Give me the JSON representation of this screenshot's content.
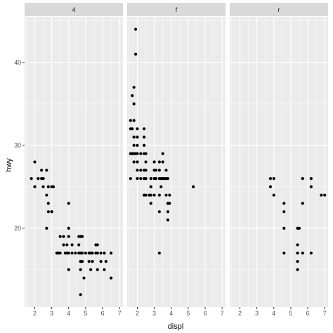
{
  "chart_data": {
    "type": "scatter",
    "xlabel": "displ",
    "ylabel": "hwy",
    "xlim": [
      1.4,
      7.2
    ],
    "ylim": [
      10.5,
      45.5
    ],
    "x_major_ticks": [
      2,
      3,
      4,
      5,
      6,
      7
    ],
    "x_tick_labels": [
      "2",
      "3",
      "4",
      "5",
      "6",
      "7"
    ],
    "y_major_ticks": [
      20,
      30,
      40
    ],
    "y_tick_labels": [
      "20",
      "30",
      "40"
    ],
    "grid": true,
    "facets": [
      {
        "label": "4",
        "points": [
          [
            1.8,
            26
          ],
          [
            2.0,
            25
          ],
          [
            2.0,
            28
          ],
          [
            2.2,
            26
          ],
          [
            2.4,
            26
          ],
          [
            2.4,
            27
          ],
          [
            2.5,
            26
          ],
          [
            2.5,
            25
          ],
          [
            2.7,
            27
          ],
          [
            2.7,
            24
          ],
          [
            2.8,
            25
          ],
          [
            2.8,
            23
          ],
          [
            2.8,
            22
          ],
          [
            3.0,
            22
          ],
          [
            3.0,
            25
          ],
          [
            3.1,
            25
          ],
          [
            2.7,
            20
          ],
          [
            3.0,
            22
          ],
          [
            3.3,
            17
          ],
          [
            3.4,
            17
          ],
          [
            3.5,
            17
          ],
          [
            3.5,
            19
          ],
          [
            3.7,
            19
          ],
          [
            3.7,
            18
          ],
          [
            3.8,
            17
          ],
          [
            3.9,
            17
          ],
          [
            3.9,
            18
          ],
          [
            4.0,
            15
          ],
          [
            4.0,
            17
          ],
          [
            4.0,
            19
          ],
          [
            4.0,
            20
          ],
          [
            4.0,
            23
          ],
          [
            4.2,
            18
          ],
          [
            4.2,
            17
          ],
          [
            4.4,
            17
          ],
          [
            4.6,
            17
          ],
          [
            4.6,
            19
          ],
          [
            4.6,
            18
          ],
          [
            4.7,
            16
          ],
          [
            4.7,
            17
          ],
          [
            4.7,
            19
          ],
          [
            4.7,
            15
          ],
          [
            4.7,
            12
          ],
          [
            4.8,
            16
          ],
          [
            4.8,
            17
          ],
          [
            4.8,
            19
          ],
          [
            4.9,
            14
          ],
          [
            5.0,
            17
          ],
          [
            5.2,
            17
          ],
          [
            5.2,
            16
          ],
          [
            5.3,
            17
          ],
          [
            5.3,
            15
          ],
          [
            5.4,
            17
          ],
          [
            5.4,
            16
          ],
          [
            5.6,
            17
          ],
          [
            5.7,
            15
          ],
          [
            5.7,
            17
          ],
          [
            5.9,
            16
          ],
          [
            5.9,
            17
          ],
          [
            6.1,
            17
          ],
          [
            6.1,
            15
          ],
          [
            6.2,
            16
          ],
          [
            6.5,
            14
          ],
          [
            6.5,
            17
          ],
          [
            5.6,
            18
          ],
          [
            5.7,
            18
          ]
        ]
      },
      {
        "label": "f",
        "points": [
          [
            1.6,
            33
          ],
          [
            1.6,
            32
          ],
          [
            1.6,
            29
          ],
          [
            1.6,
            26
          ],
          [
            1.7,
            32
          ],
          [
            1.7,
            29
          ],
          [
            1.7,
            36
          ],
          [
            1.8,
            37
          ],
          [
            1.8,
            35
          ],
          [
            1.8,
            33
          ],
          [
            1.8,
            30
          ],
          [
            1.8,
            29
          ],
          [
            1.8,
            31
          ],
          [
            1.8,
            28
          ],
          [
            1.9,
            44
          ],
          [
            1.9,
            41
          ],
          [
            1.9,
            29
          ],
          [
            2.0,
            26
          ],
          [
            2.0,
            27
          ],
          [
            2.0,
            28
          ],
          [
            2.0,
            29
          ],
          [
            2.0,
            30
          ],
          [
            2.0,
            31
          ],
          [
            2.0,
            32
          ],
          [
            2.2,
            26
          ],
          [
            2.2,
            27
          ],
          [
            2.2,
            29
          ],
          [
            2.4,
            24
          ],
          [
            2.4,
            26
          ],
          [
            2.4,
            27
          ],
          [
            2.4,
            29
          ],
          [
            2.4,
            30
          ],
          [
            2.4,
            31
          ],
          [
            2.4,
            32
          ],
          [
            2.5,
            24
          ],
          [
            2.5,
            26
          ],
          [
            2.5,
            27
          ],
          [
            2.5,
            28
          ],
          [
            2.5,
            29
          ],
          [
            2.7,
            24
          ],
          [
            2.8,
            23
          ],
          [
            2.8,
            24
          ],
          [
            2.8,
            25
          ],
          [
            2.8,
            26
          ],
          [
            3.0,
            24
          ],
          [
            3.0,
            26
          ],
          [
            3.0,
            27
          ],
          [
            3.0,
            28
          ],
          [
            3.1,
            26
          ],
          [
            3.1,
            27
          ],
          [
            3.3,
            17
          ],
          [
            3.3,
            22
          ],
          [
            3.3,
            24
          ],
          [
            3.3,
            26
          ],
          [
            3.3,
            27
          ],
          [
            3.3,
            28
          ],
          [
            3.4,
            25
          ],
          [
            3.4,
            26
          ],
          [
            3.5,
            26
          ],
          [
            3.5,
            28
          ],
          [
            3.5,
            29
          ],
          [
            3.6,
            26
          ],
          [
            3.7,
            26
          ],
          [
            3.7,
            27
          ],
          [
            3.7,
            24
          ],
          [
            3.8,
            21
          ],
          [
            3.8,
            22
          ],
          [
            3.8,
            23
          ],
          [
            3.8,
            26
          ],
          [
            3.9,
            23
          ],
          [
            3.9,
            24
          ],
          [
            5.3,
            25
          ]
        ]
      },
      {
        "label": "r",
        "points": [
          [
            3.8,
            26
          ],
          [
            3.8,
            25
          ],
          [
            4.0,
            26
          ],
          [
            4.0,
            24
          ],
          [
            4.6,
            17
          ],
          [
            4.6,
            20
          ],
          [
            4.6,
            22
          ],
          [
            4.6,
            23
          ],
          [
            5.4,
            15
          ],
          [
            5.4,
            16
          ],
          [
            5.4,
            17
          ],
          [
            5.4,
            18
          ],
          [
            5.4,
            20
          ],
          [
            5.5,
            20
          ],
          [
            5.7,
            17
          ],
          [
            5.7,
            23
          ],
          [
            5.7,
            26
          ],
          [
            6.2,
            17
          ],
          [
            6.2,
            26
          ],
          [
            6.2,
            25
          ],
          [
            6.8,
            24
          ],
          [
            7.0,
            24
          ]
        ]
      }
    ]
  }
}
